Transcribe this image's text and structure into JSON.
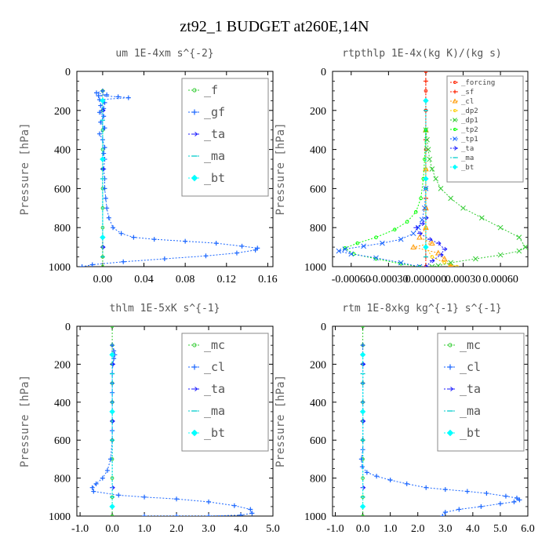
{
  "figure_title": "zt92_1  BUDGET at260E,14N",
  "colors": {
    "green": "#33cc33",
    "blue": "#1a66ff",
    "darkblue": "#1a1aff",
    "cyan": "#00cccc",
    "brightcyan": "#00ffff",
    "red": "#ff2200",
    "orange": "#ff9900",
    "yellow": "#ffcc00",
    "lime": "#00ff00"
  },
  "chart_data": [
    {
      "type": "line",
      "title": "um   1E-4xm s^{-2}",
      "ylabel": "Pressure [hPa]",
      "xlim": [
        -0.025,
        0.165
      ],
      "ylim": [
        1000,
        0
      ],
      "xticks": [
        0.0,
        0.04,
        0.08,
        0.12,
        0.16
      ],
      "xtick_labels": [
        "0.00",
        "0.04",
        "0.08",
        "0.12",
        "0.16"
      ],
      "yticks": [
        0,
        200,
        400,
        600,
        800,
        1000
      ],
      "ytick_labels": [
        "0",
        "200",
        "400",
        "600",
        "800",
        "1000"
      ],
      "legend_style": "boxed-large",
      "legend_position": "top-right",
      "series": [
        {
          "name": "_f",
          "color": "green",
          "marker": "circle",
          "x": [
            0,
            0,
            0,
            0,
            0,
            0,
            0,
            0,
            0,
            0,
            0
          ],
          "y": [
            100,
            200,
            300,
            400,
            500,
            600,
            700,
            800,
            900,
            950,
            1000
          ]
        },
        {
          "name": "_gf",
          "color": "blue",
          "marker": "plus",
          "x": [
            0,
            -0.006,
            0.004,
            -0.004,
            0.015,
            0.025,
            -0.003,
            0.002,
            -0.002,
            0.001,
            -0.003,
            0.001,
            -0.002,
            0.002,
            -0.003,
            0,
            0.002,
            0.001,
            0.002,
            0.001,
            0.002,
            0.002,
            0.003,
            0.004,
            0.006,
            0.01,
            0.018,
            0.03,
            0.05,
            0.08,
            0.11,
            0.135,
            0.15,
            0.148,
            0.13,
            0.1,
            0.06,
            0.02,
            -0.01,
            -0.02
          ],
          "y": [
            100,
            110,
            120,
            125,
            130,
            135,
            145,
            160,
            175,
            190,
            210,
            230,
            260,
            290,
            320,
            350,
            390,
            420,
            450,
            500,
            550,
            600,
            650,
            700,
            750,
            800,
            830,
            850,
            860,
            870,
            880,
            895,
            905,
            915,
            930,
            945,
            960,
            975,
            990,
            1000
          ]
        },
        {
          "name": "_ta",
          "color": "darkblue",
          "marker": "arrow",
          "x": [
            0,
            0,
            0
          ],
          "y": [
            200,
            500,
            900
          ]
        },
        {
          "name": "_ma",
          "color": "cyan",
          "marker": "dash",
          "x": [
            0,
            0,
            0
          ],
          "y": [
            250,
            550,
            950
          ]
        },
        {
          "name": "_bt",
          "color": "brightcyan",
          "marker": "diamond",
          "x": [
            0,
            0,
            0
          ],
          "y": [
            150,
            450,
            850
          ]
        }
      ]
    },
    {
      "type": "line",
      "title": "rtpthlp   1E-4x(kg K)/(kg s)",
      "ylabel": "Pressure [hPa]",
      "xlim": [
        -0.00075,
        0.00082
      ],
      "ylim": [
        1000,
        0
      ],
      "xticks": [
        -0.0006,
        -0.0003,
        0.0,
        0.0003,
        0.0006
      ],
      "xtick_labels": [
        "-0.00060",
        "-0.00030",
        "0.000000",
        "0.00030",
        "0.00060"
      ],
      "yticks": [
        0,
        200,
        400,
        600,
        800,
        1000
      ],
      "ytick_labels": [
        "0",
        "200",
        "400",
        "600",
        "800",
        "1000"
      ],
      "legend_style": "boxed-small",
      "legend_position": "top-right",
      "series": [
        {
          "name": "_forcing",
          "color": "red",
          "marker": "circle",
          "x": [
            0,
            0,
            0,
            0,
            0,
            0,
            0,
            0,
            0,
            0,
            0
          ],
          "y": [
            0,
            100,
            200,
            300,
            400,
            500,
            600,
            700,
            800,
            900,
            1000
          ]
        },
        {
          "name": "_sf",
          "color": "red",
          "marker": "plus",
          "x": [
            0,
            0,
            0,
            0
          ],
          "y": [
            50,
            350,
            650,
            950
          ]
        },
        {
          "name": "_cl",
          "color": "orange",
          "marker": "triangle",
          "x": [
            0,
            0,
            0,
            0,
            -5e-05,
            5e-05,
            -0.0001,
            0.0001,
            0.00015,
            0.0002,
            0.0002
          ],
          "y": [
            300,
            500,
            700,
            800,
            850,
            880,
            900,
            930,
            960,
            990,
            1000
          ]
        },
        {
          "name": "_dp2",
          "color": "yellow",
          "marker": "circle",
          "x": [
            0,
            0,
            0,
            5e-05,
            0.00015,
            0.00025
          ],
          "y": [
            500,
            800,
            900,
            950,
            980,
            1000
          ]
        },
        {
          "name": "_dp1",
          "color": "green",
          "marker": "cross",
          "x": [
            0,
            1e-05,
            2e-05,
            3e-05,
            5e-05,
            8e-05,
            0.00012,
            0.0002,
            0.0003,
            0.00045,
            0.0006,
            0.00075,
            0.0008,
            0.00075,
            0.0006,
            0.0004,
            0.0002,
            0.0001,
            5e-05
          ],
          "y": [
            300,
            350,
            400,
            450,
            500,
            550,
            600,
            650,
            700,
            750,
            800,
            850,
            900,
            920,
            940,
            960,
            980,
            995,
            1000
          ]
        },
        {
          "name": "_tp2",
          "color": "lime",
          "marker": "circle",
          "x": [
            0,
            -1e-05,
            -2e-05,
            -4e-05,
            -8e-05,
            -0.00015,
            -0.00025,
            -0.0004,
            -0.00055,
            -0.00065,
            -0.00058,
            -0.0004,
            -0.0002,
            -5e-05
          ],
          "y": [
            300,
            450,
            550,
            650,
            720,
            770,
            810,
            850,
            880,
            905,
            935,
            960,
            985,
            1000
          ]
        },
        {
          "name": "_tp1",
          "color": "blue",
          "marker": "cross",
          "x": [
            0,
            -1e-05,
            -3e-05,
            -6e-05,
            -0.0001,
            -0.0002,
            -0.00035,
            -0.0005,
            -0.00065,
            -0.0007,
            -0.0006,
            -0.0004,
            -0.0002,
            -5e-05
          ],
          "y": [
            600,
            700,
            760,
            800,
            830,
            860,
            880,
            895,
            910,
            920,
            935,
            955,
            980,
            1000
          ]
        },
        {
          "name": "_ta",
          "color": "darkblue",
          "marker": "arrow",
          "x": [
            0,
            -3e-05,
            -8e-05,
            -5e-05,
            3e-05,
            0.0001,
            0.00015,
            0.00012,
            5e-05,
            0
          ],
          "y": [
            750,
            780,
            800,
            830,
            860,
            880,
            910,
            940,
            970,
            1000
          ]
        },
        {
          "name": "_ma",
          "color": "cyan",
          "marker": "dash",
          "x": [
            0,
            0,
            0
          ],
          "y": [
            200,
            600,
            950
          ]
        },
        {
          "name": "_bt",
          "color": "brightcyan",
          "marker": "diamond",
          "x": [
            0,
            0,
            0
          ],
          "y": [
            150,
            550,
            900
          ]
        }
      ]
    },
    {
      "type": "line",
      "title": "thlm   1E-5xK s^{-1}",
      "ylabel": "Pressure [hPa]",
      "xlim": [
        -1.1,
        5.0
      ],
      "ylim": [
        1000,
        0
      ],
      "xticks": [
        -1.0,
        0.0,
        1.0,
        2.0,
        3.0,
        4.0,
        5.0
      ],
      "xtick_labels": [
        "-1.0",
        "0.0",
        "1.0",
        "2.0",
        "3.0",
        "4.0",
        "5.0"
      ],
      "yticks": [
        0,
        200,
        400,
        600,
        800,
        1000
      ],
      "ytick_labels": [
        "0",
        "200",
        "400",
        "600",
        "800",
        "1000"
      ],
      "legend_style": "boxed-large",
      "legend_position": "top-right",
      "series": [
        {
          "name": "_mc",
          "color": "green",
          "marker": "circle",
          "x": [
            0,
            0,
            0,
            0,
            0,
            0,
            0,
            0,
            0,
            0,
            0
          ],
          "y": [
            0,
            100,
            200,
            300,
            400,
            500,
            600,
            700,
            800,
            900,
            1000
          ]
        },
        {
          "name": "_cl",
          "color": "blue",
          "marker": "plus",
          "x": [
            0,
            0.05,
            0.08,
            0.05,
            0.02,
            0,
            0,
            0,
            0,
            0,
            0,
            0,
            0,
            -0.05,
            -0.15,
            -0.3,
            -0.5,
            -0.62,
            -0.58,
            0.2,
            1.0,
            2.0,
            3.0,
            3.8,
            4.3,
            4.35,
            4.0,
            3.0,
            2.0,
            1.0
          ],
          "y": [
            100,
            130,
            150,
            170,
            200,
            250,
            300,
            350,
            400,
            450,
            500,
            550,
            600,
            700,
            760,
            800,
            830,
            850,
            870,
            890,
            900,
            910,
            925,
            945,
            965,
            985,
            995,
            1000,
            1000,
            1000
          ]
        },
        {
          "name": "_ta",
          "color": "darkblue",
          "marker": "arrow",
          "x": [
            0,
            0,
            0
          ],
          "y": [
            200,
            500,
            850
          ]
        },
        {
          "name": "_ma",
          "color": "cyan",
          "marker": "dash",
          "x": [
            0,
            0,
            0
          ],
          "y": [
            250,
            600,
            900
          ]
        },
        {
          "name": "_bt",
          "color": "brightcyan",
          "marker": "diamond",
          "x": [
            0,
            0,
            0
          ],
          "y": [
            150,
            450,
            950
          ]
        }
      ]
    },
    {
      "type": "line",
      "title": "rtm   1E-8xkg kg^{-1} s^{-1}",
      "ylabel": "Pressure [hPa]",
      "xlim": [
        -1.1,
        6.0
      ],
      "ylim": [
        1000,
        0
      ],
      "xticks": [
        -1.0,
        0.0,
        1.0,
        2.0,
        3.0,
        4.0,
        5.0,
        6.0
      ],
      "xtick_labels": [
        "-1.0",
        "0.0",
        "1.0",
        "2.0",
        "3.0",
        "4.0",
        "5.0",
        "6.0"
      ],
      "yticks": [
        0,
        200,
        400,
        600,
        800,
        1000
      ],
      "ytick_labels": [
        "0",
        "200",
        "400",
        "600",
        "800",
        "1000"
      ],
      "legend_style": "boxed-large",
      "legend_position": "top-right",
      "series": [
        {
          "name": "_mc",
          "color": "green",
          "marker": "circle",
          "x": [
            0,
            0,
            0,
            0,
            0,
            0,
            0,
            0,
            0,
            0,
            0
          ],
          "y": [
            0,
            100,
            200,
            300,
            400,
            500,
            600,
            700,
            800,
            900,
            1000
          ]
        },
        {
          "name": "_cl",
          "color": "blue",
          "marker": "plus",
          "x": [
            0,
            0,
            0,
            0,
            0,
            0,
            0,
            -0.05,
            -0.02,
            0.15,
            0.5,
            1.0,
            1.6,
            2.3,
            3.0,
            3.8,
            4.5,
            5.2,
            5.6,
            5.7,
            5.5,
            5.0,
            4.3,
            3.5,
            3.0,
            2.9
          ],
          "y": [
            100,
            200,
            300,
            400,
            500,
            600,
            650,
            700,
            740,
            770,
            790,
            810,
            830,
            850,
            860,
            870,
            880,
            895,
            905,
            915,
            925,
            935,
            950,
            965,
            980,
            1000
          ]
        },
        {
          "name": "_ta",
          "color": "darkblue",
          "marker": "arrow",
          "x": [
            0,
            0,
            0
          ],
          "y": [
            200,
            500,
            850
          ]
        },
        {
          "name": "_ma",
          "color": "cyan",
          "marker": "dash",
          "x": [
            0,
            0,
            0
          ],
          "y": [
            250,
            600,
            900
          ]
        },
        {
          "name": "_bt",
          "color": "brightcyan",
          "marker": "diamond",
          "x": [
            0,
            0,
            0
          ],
          "y": [
            150,
            450,
            950
          ]
        }
      ]
    }
  ]
}
